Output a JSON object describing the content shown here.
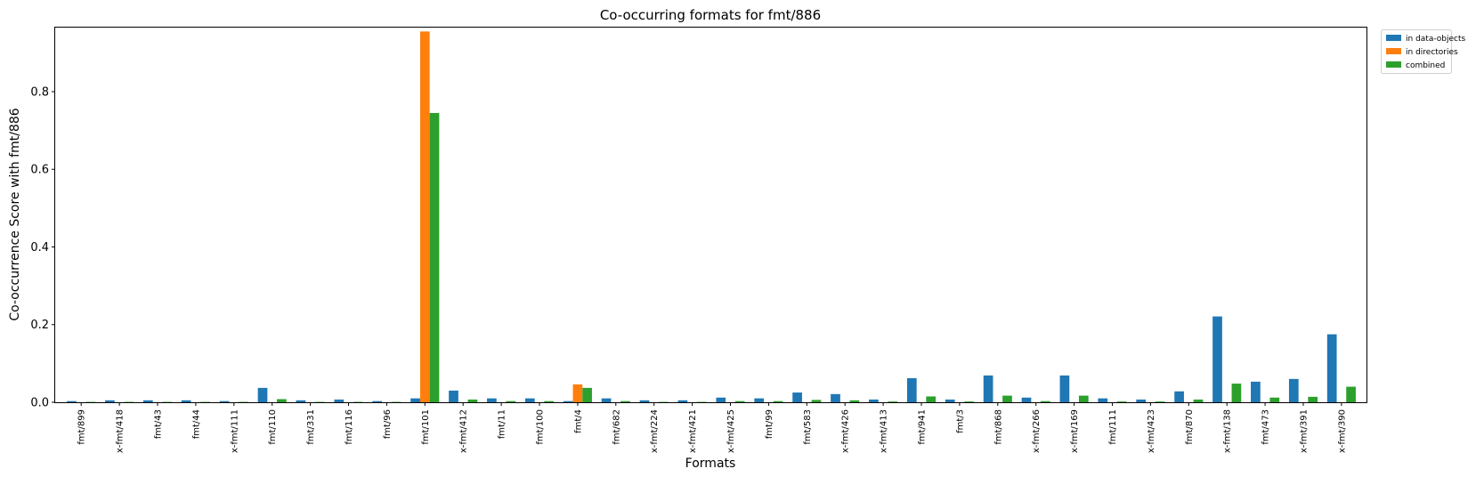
{
  "chart_data": {
    "type": "bar",
    "title": "Co-occurring formats for fmt/886",
    "xlabel": "Formats",
    "ylabel": "Co-occurrence Score with fmt/886",
    "ylim": [
      0,
      0.965
    ],
    "yticks": [
      0.0,
      0.2,
      0.4,
      0.6,
      0.8
    ],
    "ytick_labels": [
      "0.0",
      "0.2",
      "0.4",
      "0.6",
      "0.8"
    ],
    "grid": false,
    "legend_position": "top-right, outside plot area",
    "categories": [
      "fmt/899",
      "x-fmt/418",
      "fmt/43",
      "fmt/44",
      "x-fmt/111",
      "fmt/110",
      "fmt/331",
      "fmt/116",
      "fmt/96",
      "fmt/101",
      "x-fmt/412",
      "fmt/11",
      "fmt/100",
      "fmt/4",
      "fmt/682",
      "x-fmt/224",
      "x-fmt/421",
      "x-fmt/425",
      "fmt/99",
      "fmt/583",
      "x-fmt/426",
      "x-fmt/413",
      "fmt/941",
      "fmt/3",
      "fmt/868",
      "x-fmt/266",
      "x-fmt/169",
      "fmt/111",
      "x-fmt/423",
      "fmt/870",
      "x-fmt/138",
      "fmt/473",
      "x-fmt/391",
      "x-fmt/390"
    ],
    "series": [
      {
        "name": "in data-objects",
        "color": "#1f77b4",
        "values": [
          0.003,
          0.005,
          0.005,
          0.005,
          0.003,
          0.037,
          0.005,
          0.007,
          0.003,
          0.01,
          0.03,
          0.01,
          0.01,
          0.003,
          0.01,
          0.005,
          0.005,
          0.012,
          0.01,
          0.025,
          0.021,
          0.007,
          0.062,
          0.007,
          0.069,
          0.012,
          0.069,
          0.01,
          0.007,
          0.028,
          0.221,
          0.053,
          0.06,
          0.175
        ]
      },
      {
        "name": "in directories",
        "color": "#ff7f0e",
        "values": [
          0,
          0,
          0,
          0,
          0,
          0,
          0,
          0,
          0,
          0.955,
          0,
          0,
          0,
          0.046,
          0,
          0,
          0,
          0,
          0,
          0,
          0,
          0,
          0,
          0,
          0,
          0,
          0,
          0,
          0,
          0,
          0,
          0,
          0,
          0
        ]
      },
      {
        "name": "combined",
        "color": "#2ca02c",
        "values": [
          0.001,
          0.001,
          0.001,
          0.001,
          0.001,
          0.008,
          0.001,
          0.001,
          0.001,
          0.745,
          0.007,
          0.003,
          0.003,
          0.037,
          0.003,
          0.001,
          0.001,
          0.003,
          0.003,
          0.006,
          0.005,
          0.002,
          0.015,
          0.002,
          0.017,
          0.003,
          0.017,
          0.002,
          0.002,
          0.007,
          0.048,
          0.012,
          0.014,
          0.04
        ]
      }
    ]
  }
}
